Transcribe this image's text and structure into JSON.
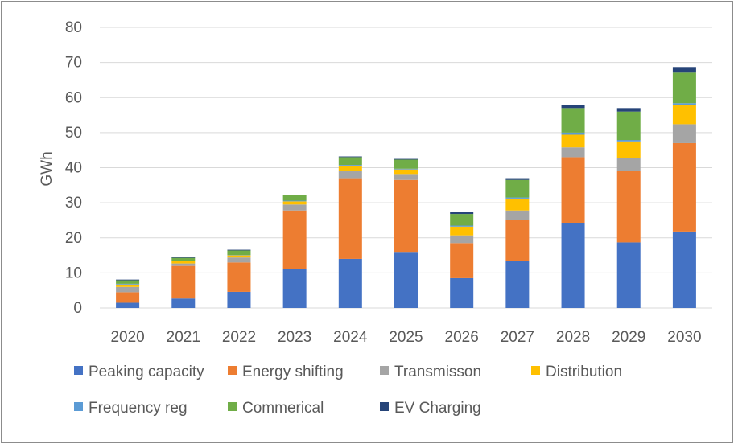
{
  "chart_data": {
    "type": "bar",
    "stacked": true,
    "title": "",
    "xlabel": "",
    "ylabel": "GWh",
    "ylim": [
      0,
      80
    ],
    "yticks": [
      0,
      10,
      20,
      30,
      40,
      50,
      60,
      70,
      80
    ],
    "grid": true,
    "legend_position": "bottom",
    "categories": [
      "2020",
      "2021",
      "2022",
      "2023",
      "2024",
      "2025",
      "2026",
      "2027",
      "2028",
      "2029",
      "2030"
    ],
    "series": [
      {
        "name": "Peaking capacity",
        "color": "#4472C4",
        "values": [
          1.5,
          2.7,
          4.6,
          11.2,
          14.0,
          16.0,
          8.5,
          13.5,
          24.3,
          18.7,
          21.8
        ]
      },
      {
        "name": "Energy shifting",
        "color": "#ED7D31",
        "values": [
          3.0,
          9.3,
          8.4,
          16.6,
          23.0,
          20.5,
          10.0,
          11.5,
          18.7,
          20.3,
          25.2
        ]
      },
      {
        "name": "Transmisson",
        "color": "#A5A5A5",
        "values": [
          1.5,
          0.7,
          1.4,
          1.7,
          2.0,
          1.7,
          2.2,
          2.8,
          2.8,
          3.8,
          5.4
        ]
      },
      {
        "name": "Distribution",
        "color": "#FFC000",
        "values": [
          0.7,
          0.7,
          0.6,
          0.9,
          1.6,
          1.3,
          2.5,
          3.4,
          3.6,
          4.7,
          5.6
        ]
      },
      {
        "name": "Frequency reg",
        "color": "#5B9BD5",
        "values": [
          0.2,
          0.1,
          0.1,
          0.2,
          0.2,
          0.2,
          0.3,
          0.3,
          0.6,
          0.4,
          0.4
        ]
      },
      {
        "name": "Commerical",
        "color": "#70AD47",
        "values": [
          1.0,
          0.8,
          1.3,
          1.5,
          2.2,
          2.6,
          3.3,
          5.0,
          7.0,
          8.1,
          8.7
        ]
      },
      {
        "name": "EV Charging",
        "color": "#264478",
        "values": [
          0.2,
          0.2,
          0.2,
          0.2,
          0.2,
          0.2,
          0.5,
          0.5,
          0.8,
          1.0,
          1.6
        ]
      }
    ]
  }
}
